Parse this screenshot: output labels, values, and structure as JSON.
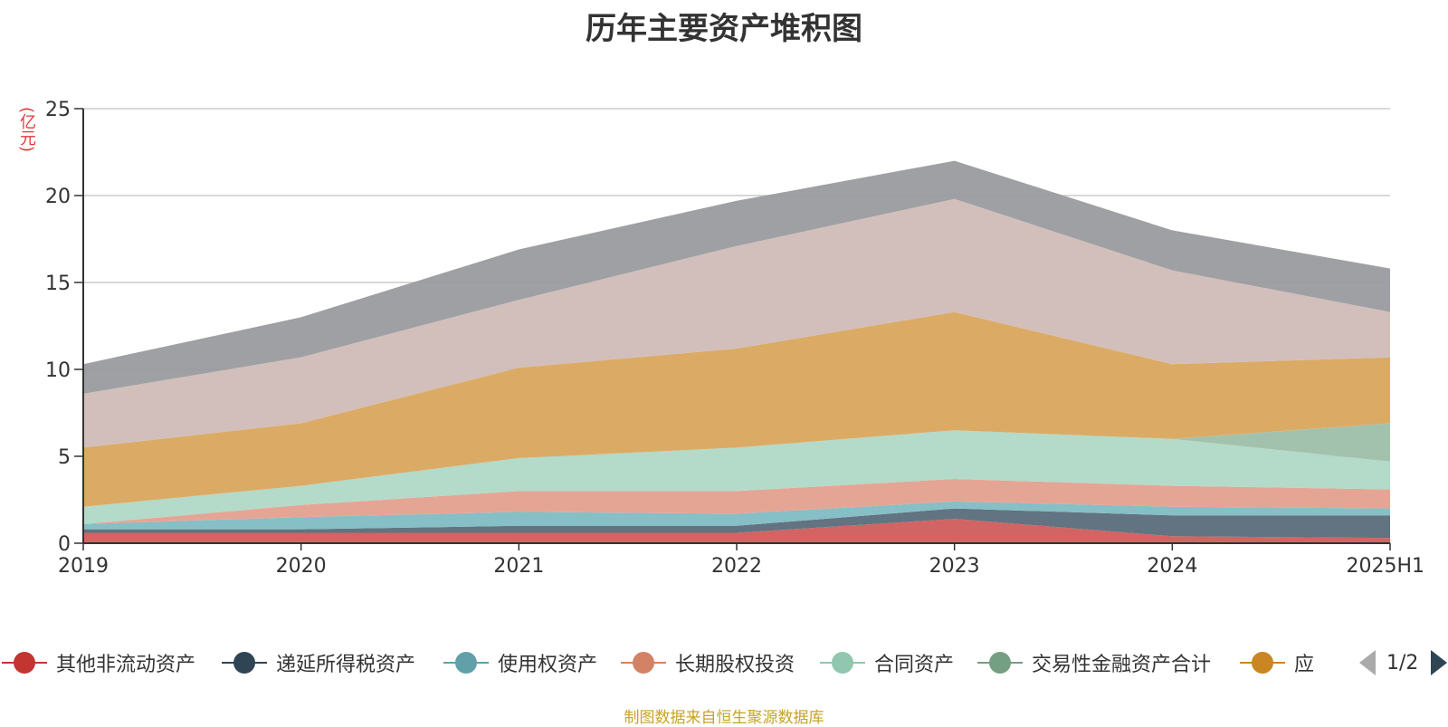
{
  "chart_data": {
    "type": "area",
    "stacked": true,
    "title": "历年主要资产堆积图",
    "ylabel": "(亿元)",
    "xlabel": "",
    "categories": [
      "2019",
      "2020",
      "2021",
      "2022",
      "2023",
      "2024",
      "2025H1"
    ],
    "ylim": [
      0,
      25
    ],
    "yticks": [
      0,
      5,
      10,
      15,
      20,
      25
    ],
    "grid": true,
    "legend_position": "bottom",
    "series": [
      {
        "name": "其他非流动资产",
        "color": "#d05c5c",
        "values": [
          0.6,
          0.6,
          0.6,
          0.6,
          1.4,
          0.4,
          0.3
        ]
      },
      {
        "name": "递延所得税资产",
        "color": "#5a6b7a",
        "values": [
          0.2,
          0.2,
          0.4,
          0.4,
          0.6,
          1.2,
          1.3
        ]
      },
      {
        "name": "使用权资产",
        "color": "#7fbcc2",
        "values": [
          0.3,
          0.7,
          0.8,
          0.7,
          0.4,
          0.5,
          0.4
        ]
      },
      {
        "name": "长期股权投资",
        "color": "#e4a08f",
        "values": [
          0.0,
          0.7,
          1.2,
          1.3,
          1.3,
          1.2,
          1.1
        ]
      },
      {
        "name": "合同资产",
        "color": "#b0d8c6",
        "values": [
          1.0,
          1.1,
          1.9,
          2.5,
          2.8,
          2.7,
          1.6
        ]
      },
      {
        "name": "交易性金融资产合计",
        "color": "#9ebfa9",
        "values": [
          0.0,
          0.0,
          0.0,
          0.0,
          0.0,
          0.0,
          2.2
        ]
      },
      {
        "name": "应",
        "color": "#d9a75e",
        "values": [
          3.4,
          3.6,
          5.2,
          5.7,
          6.8,
          4.3,
          3.8
        ]
      },
      {
        "name": "",
        "color": "#d0bcb7",
        "values": [
          3.1,
          3.8,
          3.9,
          5.9,
          6.5,
          5.4,
          2.6
        ]
      },
      {
        "name": "",
        "color": "#9a9b9e",
        "values": [
          1.7,
          2.3,
          2.9,
          2.6,
          2.2,
          2.3,
          2.5
        ]
      }
    ]
  },
  "legend": {
    "items": [
      {
        "label": "其他非流动资产",
        "color": "#c23531"
      },
      {
        "label": "递延所得税资产",
        "color": "#2f4554"
      },
      {
        "label": "使用权资产",
        "color": "#61a0a8"
      },
      {
        "label": "长期股权投资",
        "color": "#d48265"
      },
      {
        "label": "合同资产",
        "color": "#91c7ae"
      },
      {
        "label": "交易性金融资产合计",
        "color": "#749f83"
      },
      {
        "label": "应",
        "color": "#ca8622"
      }
    ],
    "page": "1/2"
  },
  "source_note": "制图数据来自恒生聚源数据库"
}
